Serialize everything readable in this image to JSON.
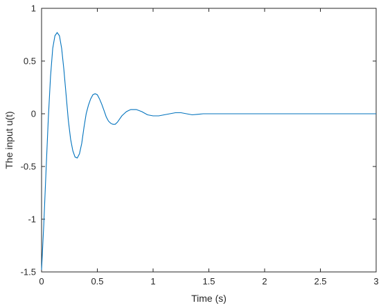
{
  "chart_data": {
    "type": "line",
    "title": "",
    "xlabel": "Time (s)",
    "ylabel": "The input u(t)",
    "xlim": [
      0,
      3
    ],
    "ylim": [
      -1.5,
      1
    ],
    "grid": false,
    "legend": false,
    "line_color": "#0072BD",
    "x_ticks": [
      "0",
      "0.5",
      "1",
      "1.5",
      "2",
      "2.5",
      "3"
    ],
    "y_ticks": [
      "-1.5",
      "-1",
      "-0.5",
      "0",
      "0.5",
      "1"
    ],
    "x_tick_values": [
      0,
      0.5,
      1,
      1.5,
      2,
      2.5,
      3
    ],
    "y_tick_values": [
      -1.5,
      -1,
      -0.5,
      0,
      0.5,
      1
    ],
    "series": [
      {
        "x": [
          0,
          0.02,
          0.04,
          0.06,
          0.08,
          0.1,
          0.12,
          0.14,
          0.16,
          0.18,
          0.2,
          0.22,
          0.24,
          0.26,
          0.28,
          0.3,
          0.32,
          0.34,
          0.36,
          0.38,
          0.4,
          0.42,
          0.44,
          0.46,
          0.48,
          0.5,
          0.52,
          0.54,
          0.56,
          0.58,
          0.6,
          0.62,
          0.64,
          0.66,
          0.68,
          0.7,
          0.72,
          0.74,
          0.76,
          0.78,
          0.8,
          0.85,
          0.9,
          0.95,
          1.0,
          1.05,
          1.1,
          1.15,
          1.2,
          1.25,
          1.3,
          1.35,
          1.4,
          1.45,
          1.5,
          1.6,
          1.7,
          1.8,
          2.0,
          2.5,
          3.0
        ],
        "y": [
          -1.48,
          -1.05,
          -0.55,
          -0.05,
          0.35,
          0.62,
          0.74,
          0.77,
          0.74,
          0.62,
          0.42,
          0.18,
          -0.06,
          -0.24,
          -0.35,
          -0.41,
          -0.42,
          -0.38,
          -0.28,
          -0.13,
          0.0,
          0.08,
          0.14,
          0.18,
          0.19,
          0.18,
          0.14,
          0.09,
          0.03,
          -0.03,
          -0.07,
          -0.09,
          -0.1,
          -0.1,
          -0.08,
          -0.05,
          -0.02,
          0.0,
          0.02,
          0.03,
          0.04,
          0.04,
          0.02,
          -0.01,
          -0.02,
          -0.02,
          -0.01,
          0.0,
          0.01,
          0.01,
          0.0,
          -0.01,
          -0.005,
          0.0,
          0.0,
          0.0,
          0.0,
          0.0,
          0.0,
          0.0,
          0.0
        ]
      }
    ]
  }
}
